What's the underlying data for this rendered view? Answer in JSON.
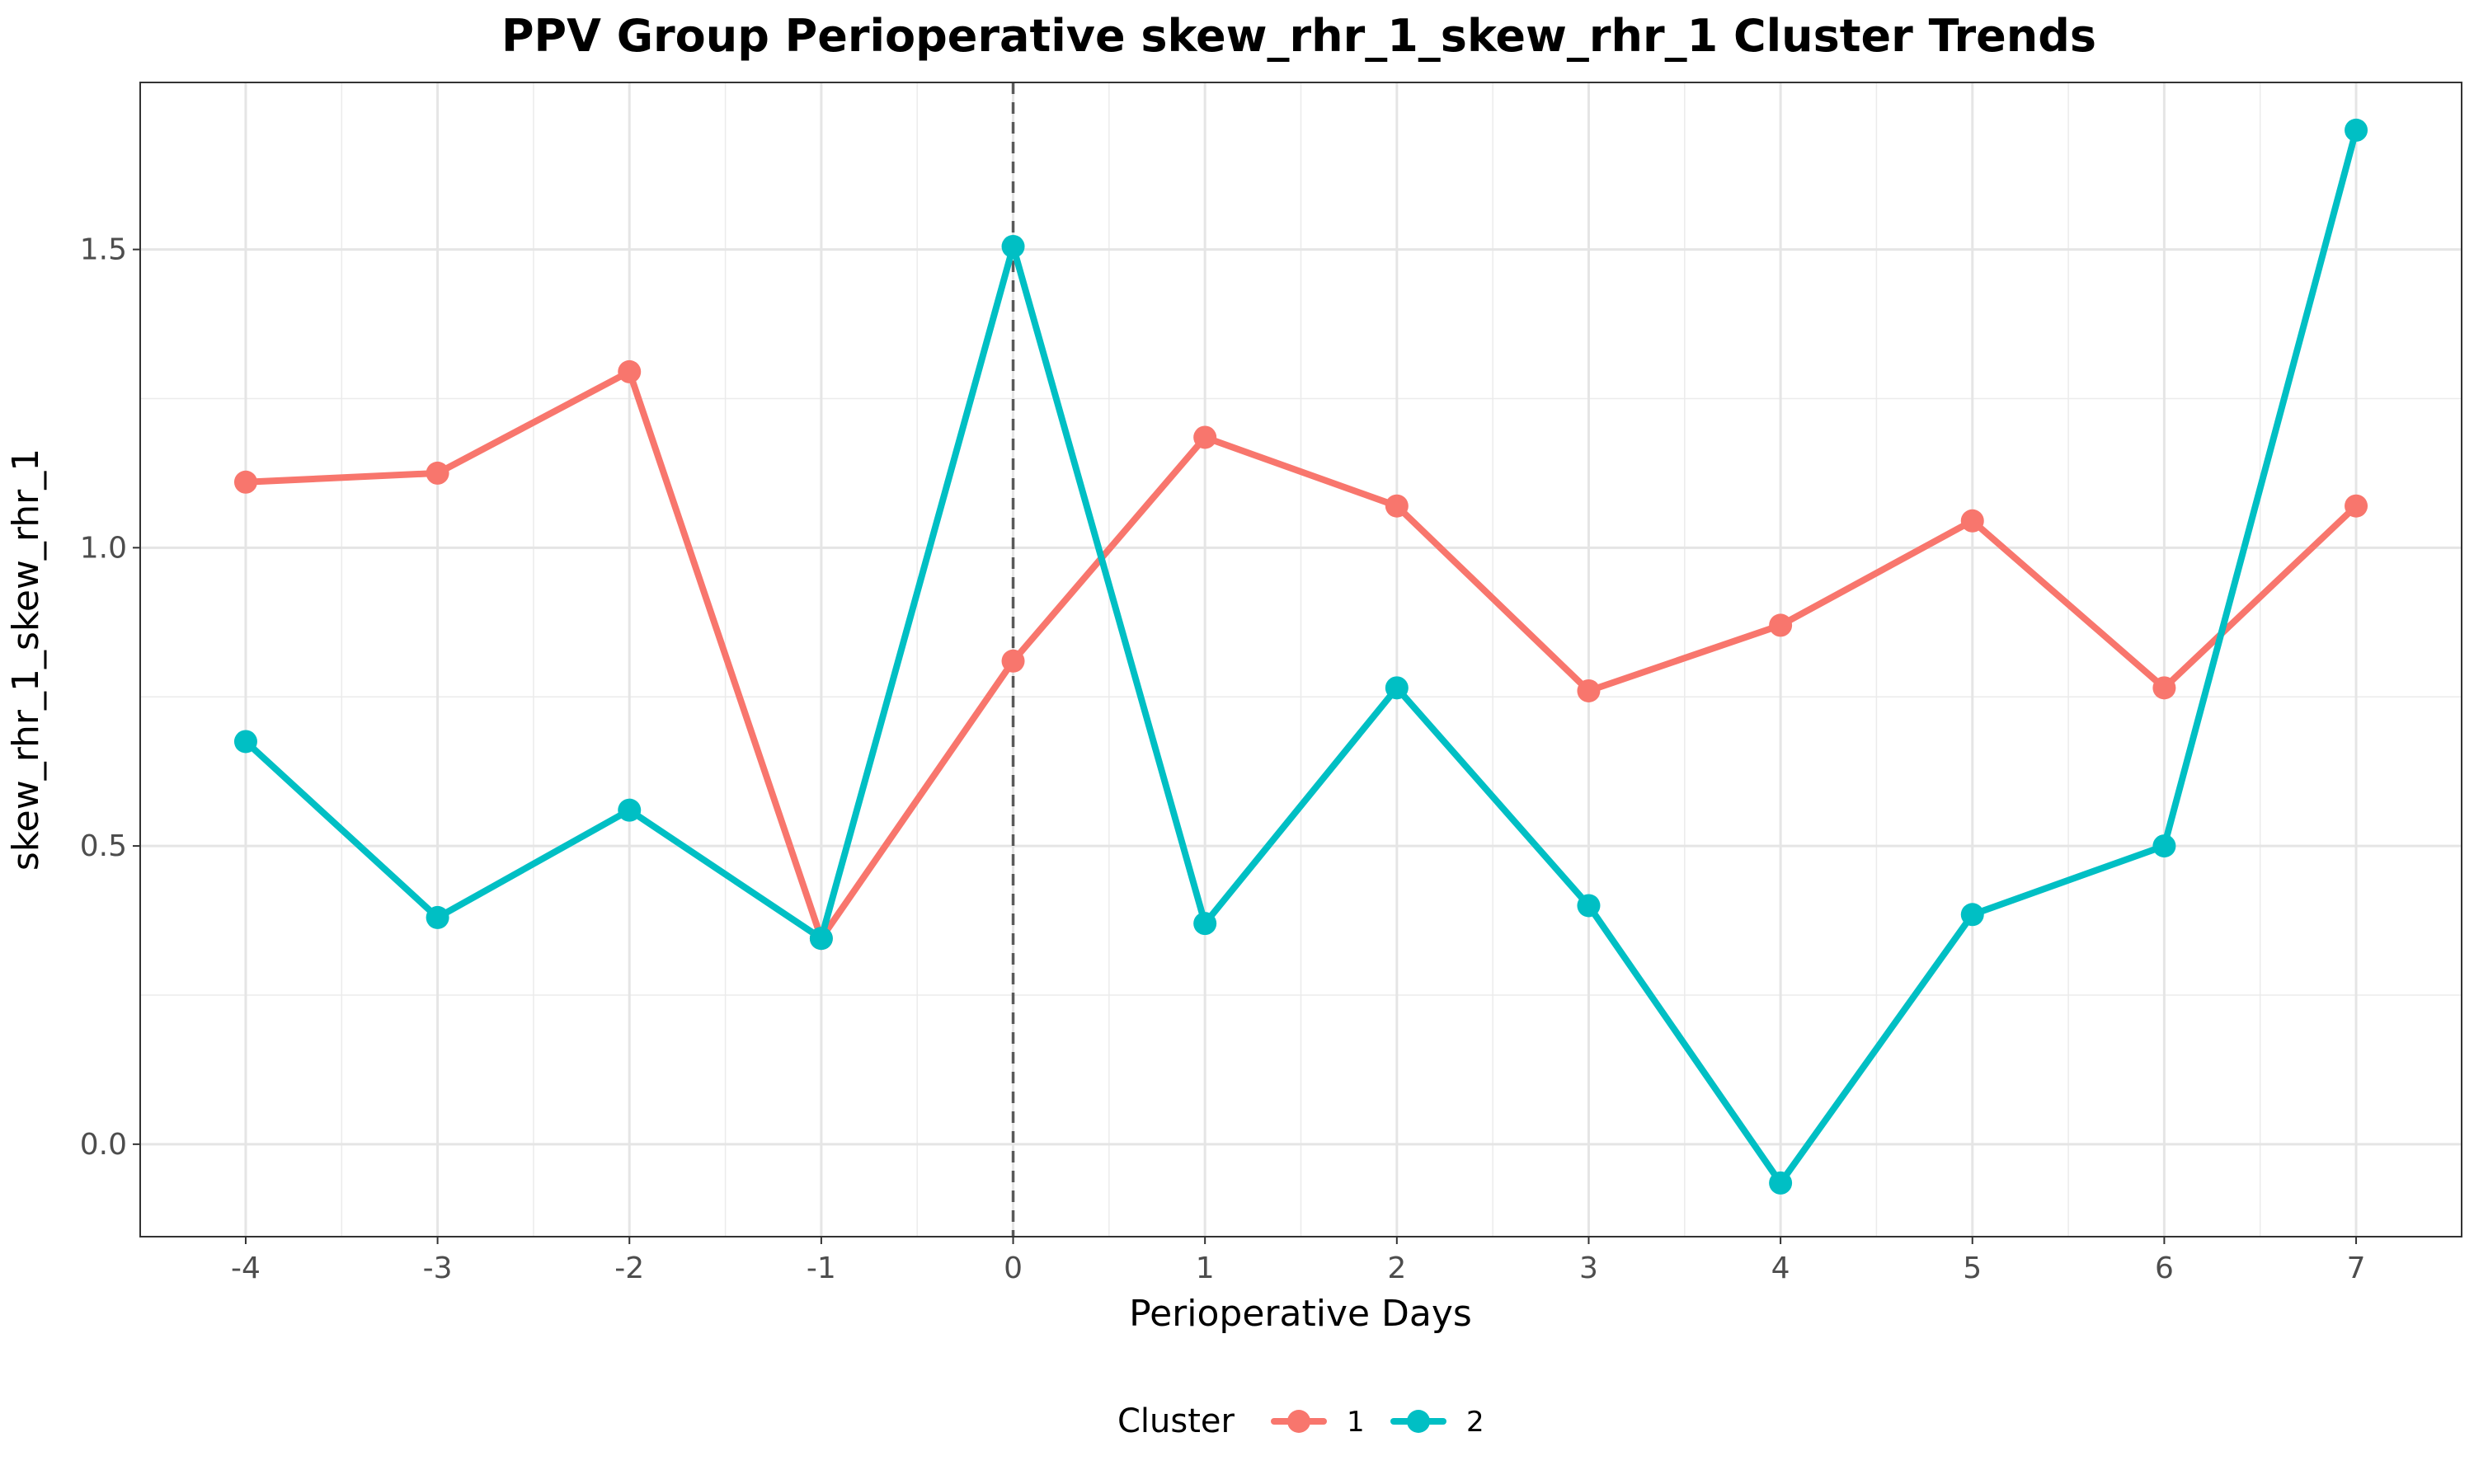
{
  "chart_data": {
    "type": "line",
    "title": "PPV Group Perioperative skew_rhr_1_skew_rhr_1 Cluster Trends",
    "xlabel": "Perioperative Days",
    "ylabel": "skew_rhr_1_skew_rhr_1",
    "x": [
      -4,
      -3,
      -2,
      -1,
      0,
      1,
      2,
      3,
      4,
      5,
      6,
      7
    ],
    "x_tick_labels": [
      "-4",
      "-3",
      "-2",
      "-1",
      "0",
      "1",
      "2",
      "3",
      "4",
      "5",
      "6",
      "7"
    ],
    "y_ticks": [
      0.0,
      0.5,
      1.0,
      1.5
    ],
    "y_tick_labels": [
      "0.0",
      "0.5",
      "1.0",
      "1.5"
    ],
    "xlim": [
      -4.55,
      7.55
    ],
    "ylim": [
      -0.155,
      1.78
    ],
    "vline_x": 0,
    "grid": true,
    "legend": {
      "title": "Cluster",
      "position": "bottom"
    },
    "series": [
      {
        "name": "1",
        "color": "#F8766D",
        "values": [
          1.11,
          1.125,
          1.295,
          0.345,
          0.81,
          1.185,
          1.07,
          0.76,
          0.87,
          1.045,
          0.765,
          1.07
        ]
      },
      {
        "name": "2",
        "color": "#00BFC4",
        "values": [
          0.675,
          0.38,
          0.56,
          0.345,
          1.505,
          0.37,
          0.765,
          0.4,
          -0.065,
          0.385,
          0.5,
          1.7
        ]
      }
    ]
  }
}
